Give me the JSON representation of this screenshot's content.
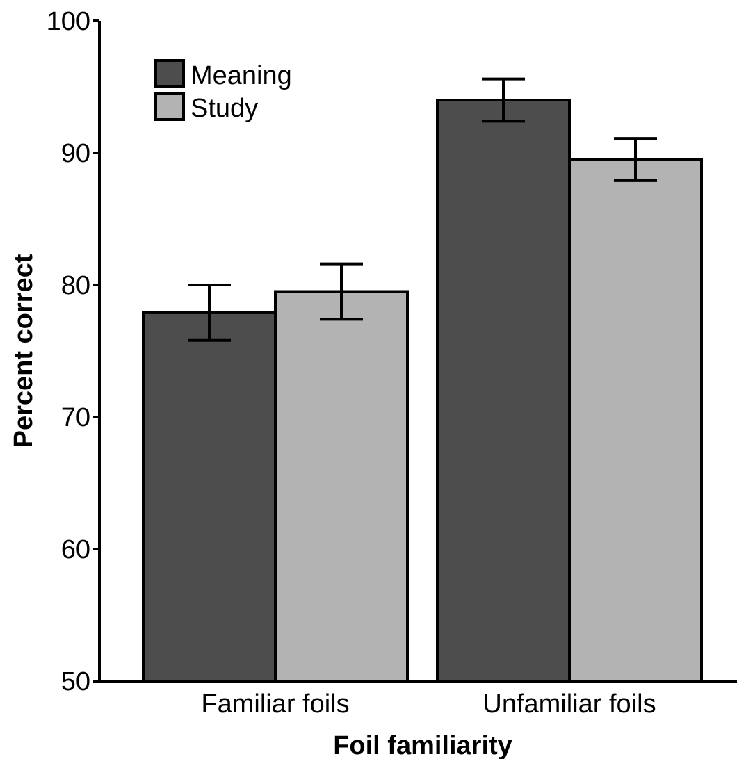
{
  "chart_data": {
    "type": "bar",
    "title": "",
    "xlabel": "Foil familiarity",
    "ylabel": "Percent correct",
    "categories": [
      "Familiar foils",
      "Unfamiliar foils"
    ],
    "series": [
      {
        "name": "Meaning",
        "color": "#4d4d4d",
        "values": [
          77.9,
          94.0
        ],
        "error": [
          2.1,
          1.6
        ]
      },
      {
        "name": "Study",
        "color": "#b3b3b3",
        "values": [
          79.5,
          89.5
        ],
        "error": [
          2.1,
          1.6
        ]
      }
    ],
    "ylim": [
      50,
      100
    ],
    "yticks": [
      "50",
      "60",
      "70",
      "80",
      "90",
      "100"
    ],
    "grid": false,
    "legend_position": "top-left",
    "bar_stroke": "#000000",
    "bar_style": "adjacent bars with error bars"
  }
}
